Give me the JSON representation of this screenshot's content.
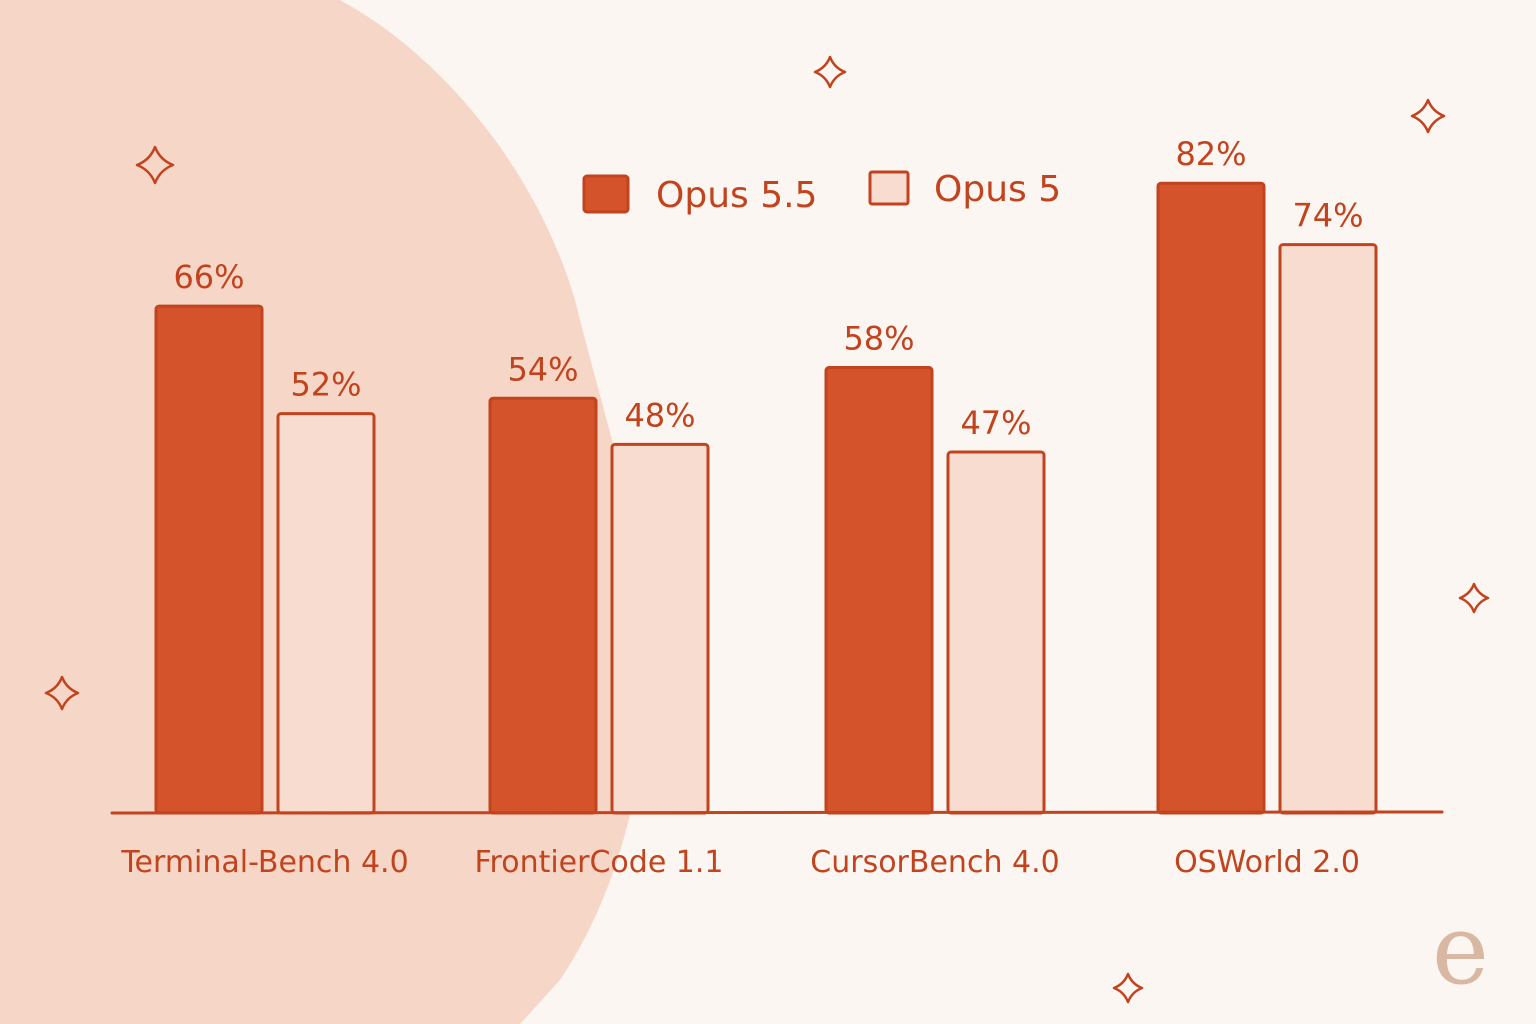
{
  "colors": {
    "background": "#fbf6f1",
    "blob": "#f6d6c7",
    "primary": "#d4532a",
    "primary_stroke": "#c2441f",
    "secondary_fill": "#f8dcd0",
    "watermark": "#d9b8a3"
  },
  "chart_data": {
    "type": "bar",
    "title": "",
    "xlabel": "",
    "ylabel": "",
    "ylim": [
      0,
      100
    ],
    "grid": false,
    "legend_position": "top-center",
    "categories": [
      "Terminal-Bench 4.0",
      "FrontierCode 1.1",
      "CursorBench 4.0",
      "OSWorld 2.0"
    ],
    "series": [
      {
        "name": "Opus 5.5",
        "values": [
          66,
          54,
          58,
          82
        ],
        "labels": [
          "66%",
          "54%",
          "58%",
          "82%"
        ],
        "color": "#d4532a"
      },
      {
        "name": "Opus 5",
        "values": [
          52,
          48,
          47,
          74
        ],
        "labels": [
          "52%",
          "48%",
          "47%",
          "74%"
        ],
        "color": "#f8dcd0"
      }
    ]
  },
  "decorations": {
    "sparkle_icon": "four-point-star-icon",
    "watermark_logo": "e"
  }
}
